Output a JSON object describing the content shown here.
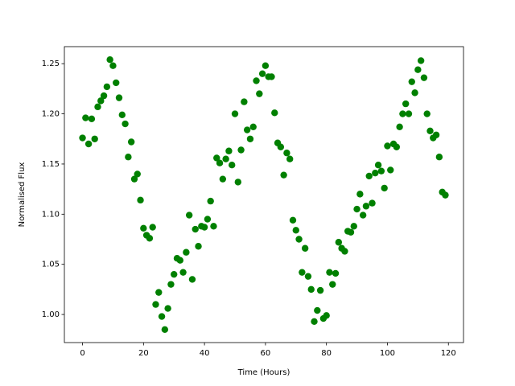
{
  "chart_data": {
    "type": "scatter",
    "x_label": "Time (Hours)",
    "y_label": "Normalised Flux",
    "color": "#008000",
    "xlim": [
      -5.95,
      124.95
    ],
    "ylim": [
      0.972,
      1.267
    ],
    "xticks": [
      0,
      20,
      40,
      60,
      80,
      100,
      120
    ],
    "yticks": [
      {
        "value": 1.0,
        "label": "1.00"
      },
      1.05,
      {
        "value": 1.1,
        "label": "1.10"
      },
      1.15,
      {
        "value": 1.2,
        "label": "1.20"
      },
      1.25
    ],
    "series": [
      {
        "name": "Flux",
        "color": "#008000",
        "x": [
          0,
          1,
          2,
          3,
          4,
          5,
          6,
          7,
          8,
          9,
          10,
          11,
          12,
          13,
          14,
          15,
          16,
          17,
          18,
          19,
          20,
          21,
          22,
          23,
          24,
          25,
          26,
          27,
          28,
          29,
          30,
          31,
          32,
          33,
          34,
          35,
          36,
          37,
          38,
          39,
          40,
          41,
          42,
          43,
          44,
          45,
          46,
          47,
          48,
          49,
          50,
          51,
          52,
          53,
          54,
          55,
          56,
          57,
          58,
          59,
          60,
          61,
          62,
          63,
          64,
          65,
          66,
          67,
          68,
          69,
          70,
          71,
          72,
          73,
          74,
          75,
          76,
          77,
          78,
          79,
          80,
          81,
          82,
          83,
          84,
          85,
          86,
          87,
          88,
          89,
          90,
          91,
          92,
          93,
          94,
          95,
          96,
          97,
          98,
          99,
          100,
          101,
          102,
          103,
          104,
          105,
          106,
          107,
          108,
          109,
          110,
          111,
          112,
          113,
          114,
          115,
          116,
          117,
          118,
          119
        ],
        "values": [
          1.176,
          1.196,
          1.17,
          1.195,
          1.175,
          1.207,
          1.213,
          1.218,
          1.227,
          1.254,
          1.248,
          1.231,
          1.216,
          1.199,
          1.19,
          1.157,
          1.172,
          1.135,
          1.14,
          1.114,
          1.086,
          1.079,
          1.076,
          1.087,
          1.01,
          1.022,
          0.998,
          0.985,
          1.006,
          1.03,
          1.04,
          1.056,
          1.054,
          1.042,
          1.062,
          1.099,
          1.035,
          1.085,
          1.068,
          1.088,
          1.087,
          1.095,
          1.113,
          1.088,
          1.156,
          1.151,
          1.135,
          1.155,
          1.163,
          1.149,
          1.2,
          1.132,
          1.164,
          1.212,
          1.184,
          1.175,
          1.187,
          1.233,
          1.22,
          1.24,
          1.248,
          1.237,
          1.237,
          1.201,
          1.171,
          1.167,
          1.139,
          1.161,
          1.155,
          1.094,
          1.084,
          1.075,
          1.042,
          1.066,
          1.038,
          1.025,
          0.993,
          1.004,
          1.024,
          0.996,
          0.999,
          1.042,
          1.03,
          1.041,
          1.072,
          1.066,
          1.063,
          1.083,
          1.082,
          1.088,
          1.105,
          1.12,
          1.099,
          1.108,
          1.138,
          1.111,
          1.141,
          1.149,
          1.143,
          1.126,
          1.168,
          1.144,
          1.17,
          1.167,
          1.187,
          1.2,
          1.21,
          1.2,
          1.232,
          1.221,
          1.244,
          1.253,
          1.236,
          1.2,
          1.183,
          1.176,
          1.179,
          1.157,
          1.122,
          1.119
        ]
      }
    ]
  }
}
